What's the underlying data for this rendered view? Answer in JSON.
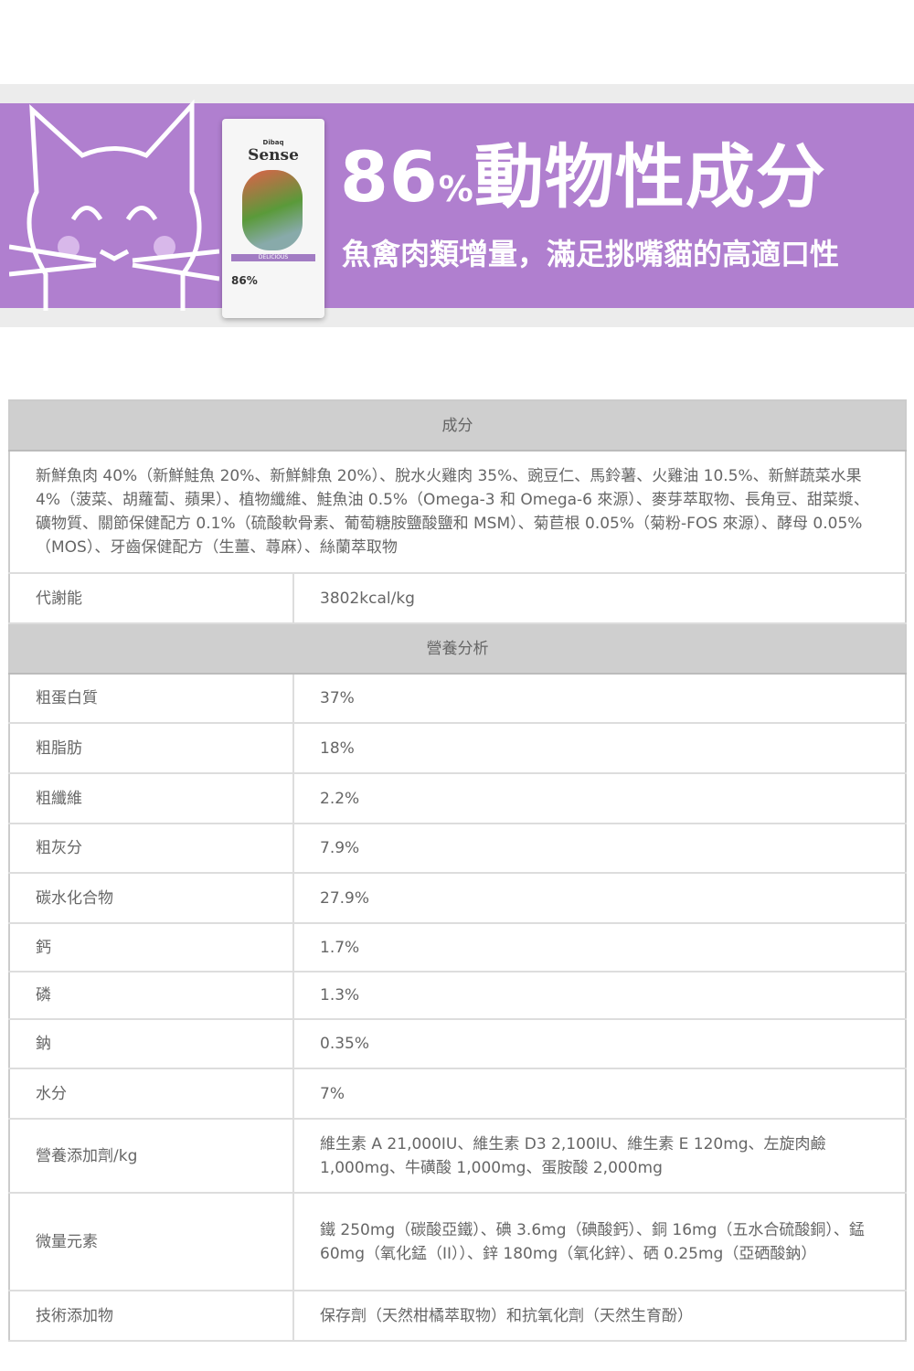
{
  "banner": {
    "title_number": "86",
    "title_percent": "%",
    "title_text": "動物性成分",
    "subtitle": "魚禽肉類增量，滿足挑嘴貓的高適口性",
    "bag": {
      "brand_small": "Dibaq",
      "brand": "Sense",
      "label": "DELICIOUS",
      "percent": "86%"
    },
    "colors": {
      "band": "#b07fcf",
      "strip": "#ececec"
    }
  },
  "table": {
    "ingredients_header": "成分",
    "ingredients": "新鮮魚肉 40%（新鮮鮭魚 20%、新鮮鯡魚 20%）、脫水火雞肉 35%、豌豆仁、馬鈴薯、火雞油 10.5%、新鮮蔬菜水果 4%（菠菜、胡蘿蔔、蘋果）、植物纖維、鮭魚油 0.5%（Omega-3 和 Omega-6 來源）、麥芽萃取物、長角豆、甜菜漿、礦物質、關節保健配方 0.1%（硫酸軟骨素、葡萄糖胺鹽酸鹽和 MSM）、菊苣根 0.05%（菊粉-FOS 來源）、酵母 0.05%（MOS）、牙齒保健配方（生薑、蕁麻）、絲蘭萃取物",
    "energy": {
      "label": "代謝能",
      "value": "3802kcal/kg"
    },
    "analysis_header": "營養分析",
    "rows": [
      {
        "label": "粗蛋白質",
        "value": "37%"
      },
      {
        "label": "粗脂肪",
        "value": "18%"
      },
      {
        "label": "粗纖維",
        "value": "2.2%"
      },
      {
        "label": "粗灰分",
        "value": "7.9%"
      },
      {
        "label": "碳水化合物",
        "value": "27.9%"
      },
      {
        "label": "鈣",
        "value": "1.7%"
      },
      {
        "label": "磷",
        "value": "1.3%"
      },
      {
        "label": "鈉",
        "value": "0.35%"
      },
      {
        "label": "水分",
        "value": "7%"
      },
      {
        "label": "營養添加劑/kg",
        "value": "維生素 A 21,000IU、維生素 D3 2,100IU、維生素 E 120mg、左旋肉鹼 1,000mg、牛磺酸 1,000mg、蛋胺酸 2,000mg"
      },
      {
        "label": "微量元素",
        "value": "鐵 250mg（碳酸亞鐵）、碘 3.6mg（碘酸鈣）、銅 16mg（五水合硫酸銅）、錳 60mg（氧化錳（II））、鋅 180mg（氧化鋅）、硒 0.25mg（亞硒酸鈉）"
      },
      {
        "label": "技術添加物",
        "value": "保存劑（天然柑橘萃取物）和抗氧化劑（天然生育酚）"
      }
    ]
  }
}
